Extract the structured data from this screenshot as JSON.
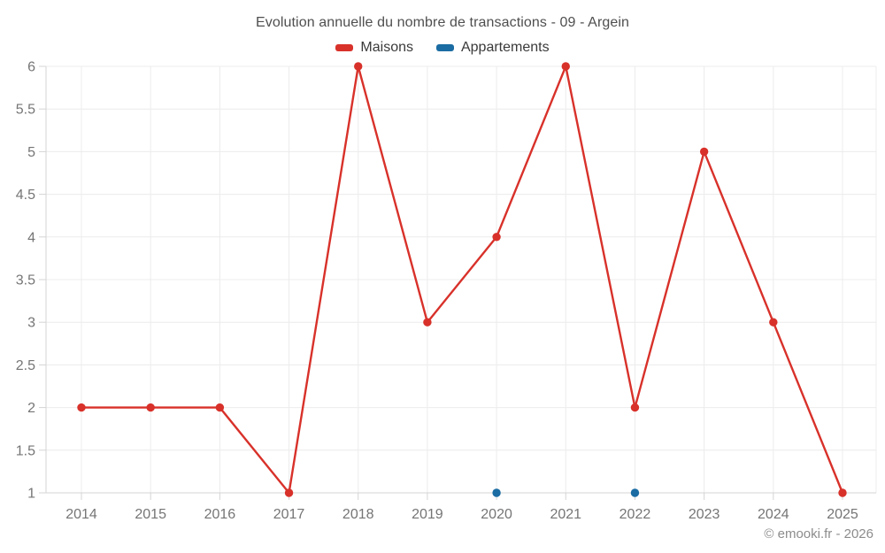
{
  "header": {
    "title": "Evolution annuelle du nombre de transactions - 09 - Argein"
  },
  "legend": {
    "items": [
      {
        "label": "Maisons",
        "color": "#d8312a"
      },
      {
        "label": "Appartements",
        "color": "#1a6ca3"
      }
    ]
  },
  "footer": {
    "copyright": "© emooki.fr - 2026"
  },
  "chart_data": {
    "type": "line",
    "title": "Evolution annuelle du nombre de transactions - 09 - Argein",
    "categories": [
      "2014",
      "2015",
      "2016",
      "2017",
      "2018",
      "2019",
      "2020",
      "2021",
      "2022",
      "2023",
      "2024",
      "2025"
    ],
    "series": [
      {
        "name": "Maisons",
        "color": "#d8312a",
        "values": [
          2,
          2,
          2,
          1,
          6,
          3,
          4,
          6,
          2,
          5,
          3,
          1
        ]
      },
      {
        "name": "Appartements",
        "color": "#1a6ca3",
        "values": [
          null,
          null,
          null,
          null,
          null,
          null,
          1,
          null,
          1,
          null,
          null,
          null
        ]
      }
    ],
    "xlabel": "",
    "ylabel": "",
    "ylim": [
      1,
      6
    ],
    "ytick_step": 0.5,
    "grid": true,
    "legend_position": "top",
    "colors": {
      "grid": "#ececec",
      "axis": "#d4d4d4",
      "tick_label": "#757575",
      "title": "#4f4f4f",
      "legend_text": "#3a3a3a",
      "copyright": "#8c8c8c",
      "background": "#ffffff"
    }
  }
}
